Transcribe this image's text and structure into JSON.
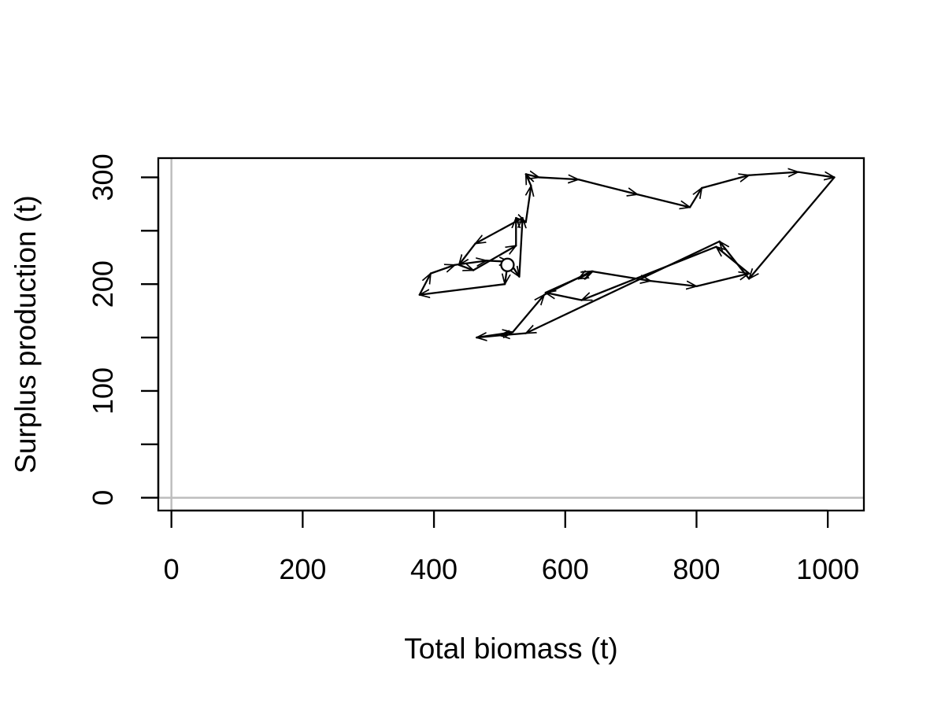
{
  "chart_data": {
    "type": "line",
    "title": "",
    "xlabel": "Total biomass (t)",
    "ylabel": "Surplus production (t)",
    "xlim": [
      -20,
      1055
    ],
    "ylim": [
      -12,
      318
    ],
    "xticks": [
      "0",
      "200",
      "400",
      "600",
      "800",
      "1000"
    ],
    "yticks": [
      "0",
      "100",
      "200",
      "300"
    ],
    "reference_lines": {
      "x": 0,
      "y": 0,
      "color": "#bebebe"
    },
    "start_marker": "open-circle",
    "arrows": true,
    "grid": false,
    "series": [
      {
        "x": [
          512,
          508,
          378,
          395,
          432,
          480,
          515,
          530,
          535,
          463,
          438,
          460,
          525,
          525,
          540,
          548,
          540,
          560,
          620,
          710,
          790,
          808,
          880,
          955,
          1010,
          880,
          835,
          540,
          500,
          465,
          520,
          568,
          640,
          730,
          800,
          880,
          830,
          625,
          570,
          642,
          620
        ],
        "y": [
          218,
          200,
          190,
          210,
          218,
          222,
          221,
          207,
          262,
          238,
          218,
          213,
          236,
          262,
          258,
          292,
          303,
          300,
          298,
          284,
          272,
          290,
          302,
          305,
          300,
          205,
          240,
          154,
          152,
          150,
          155,
          190,
          212,
          203,
          198,
          210,
          235,
          185,
          192,
          212,
          205
        ]
      }
    ],
    "colors": {
      "line": "#000000",
      "axis": "#000000",
      "reference": "#bebebe",
      "background": "#ffffff"
    }
  }
}
